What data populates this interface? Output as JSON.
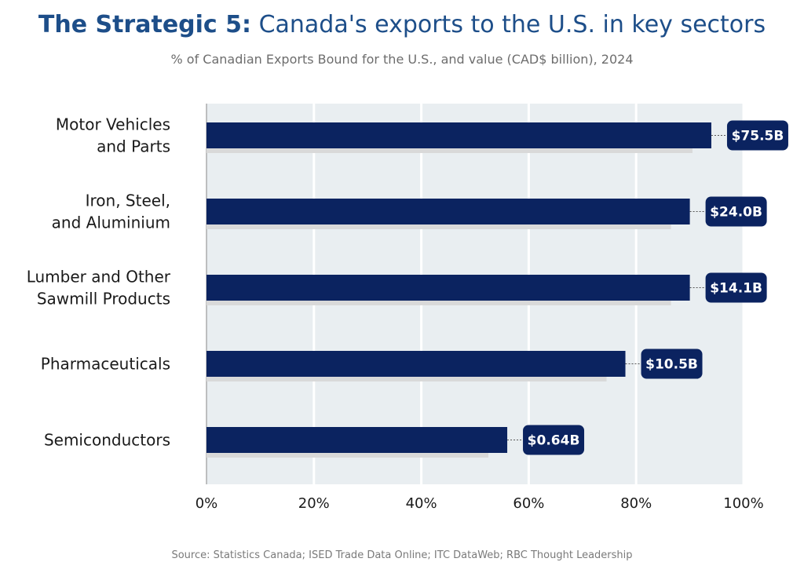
{
  "header": {
    "title_strong": "The Strategic 5:",
    "title_rest": " Canada's exports to the U.S. in key sectors",
    "subtitle": "% of Canadian Exports Bound for the U.S., and value (CAD$ billion), 2024"
  },
  "footer": {
    "source": "Source: Statistics Canada; ISED Trade Data Online; ITC DataWeb; RBC Thought Leadership"
  },
  "colors": {
    "bar": "#0b2360",
    "bar_shadow": "#d9d9d9",
    "plot_bg": "#e9eef1",
    "gridline": "#ffffff",
    "axis_line": "#999999",
    "label_box": "#0b2360",
    "label_text": "#ffffff"
  },
  "chart_data": {
    "type": "bar",
    "orientation": "horizontal",
    "title": "The Strategic 5: Canada's exports to the U.S. in key sectors",
    "subtitle": "% of Canadian Exports Bound for the U.S., and value (CAD$ billion), 2024",
    "categories": [
      [
        "Motor Vehicles",
        "and Parts"
      ],
      [
        "Iron, Steel,",
        "and Aluminium"
      ],
      [
        "Lumber and Other",
        "Sawmill Products"
      ],
      [
        "Pharmaceuticals"
      ],
      [
        "Semiconductors"
      ]
    ],
    "values": [
      94,
      90,
      90,
      78,
      56
    ],
    "value_labels": [
      "$75.5B",
      "$24.0B",
      "$14.1B",
      "$10.5B",
      "$0.64B"
    ],
    "xlim": [
      0,
      100
    ],
    "xticks": [
      0,
      20,
      40,
      60,
      80,
      100
    ],
    "xtick_labels": [
      "0%",
      "20%",
      "40%",
      "60%",
      "80%",
      "100%"
    ],
    "xlabel": "",
    "ylabel": "",
    "grid": true,
    "legend": "none"
  }
}
